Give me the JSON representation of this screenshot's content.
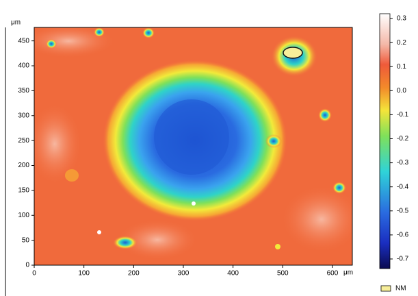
{
  "chart_data": {
    "type": "heatmap",
    "x_unit": "μm",
    "y_unit": "μm",
    "xlim": [
      0,
      640
    ],
    "xticks": [
      0,
      100,
      200,
      300,
      400,
      500,
      600
    ],
    "ylim": [
      0,
      477
    ],
    "yticks": [
      0,
      50,
      100,
      150,
      200,
      250,
      300,
      350,
      400,
      450
    ],
    "zlim": [
      -0.74,
      0.32
    ],
    "zticks": [
      0.3,
      0.2,
      0.1,
      {
        "value": 0,
        "label": "0.0"
      },
      -0.1,
      -0.2,
      -0.3,
      -0.4,
      -0.5,
      -0.6,
      -0.7
    ],
    "legend_label": "NM"
  }
}
